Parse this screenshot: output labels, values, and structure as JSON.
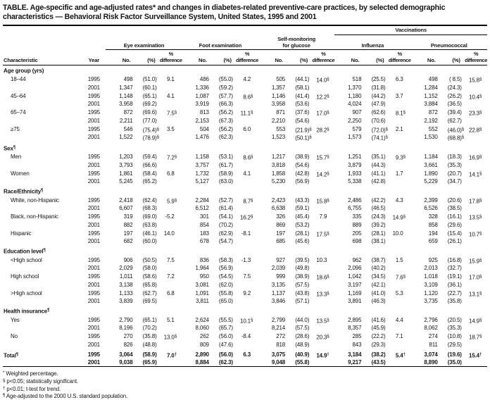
{
  "title_line1": "TABLE. Age-specific and age-adjusted rates* and changes in diabetes-related preventive-care practices, by selected demographic",
  "title_line2": "characteristics — Behavioral Risk Factor Surveillance System, United States, 1995 and 2001",
  "table": {
    "vaccinations_label": "Vaccinations",
    "groups": [
      {
        "label": "Eye examination"
      },
      {
        "label": "Foot examination"
      },
      {
        "label": "Self-monitoring\nfor glucose"
      },
      {
        "label": "Influenza"
      },
      {
        "label": "Pneumococcal"
      }
    ],
    "col_headers": {
      "characteristic": "Characteristic",
      "year": "Year",
      "no": "No.",
      "pct": "(%)",
      "diff_pct": "%",
      "diff_word": "difference"
    },
    "sections": [
      {
        "header": "Age group (yrs)",
        "rows": [
          {
            "label": "18–44",
            "data": [
              {
                "year": "1995",
                "cells": [
                  "498",
                  "(51.0)",
                  "9.1",
                  "486",
                  "(55.0)",
                  "4.2",
                  "505",
                  "(44.1)",
                  "14.0§",
                  "518",
                  "(25.5)",
                  "6.3",
                  "498",
                  "( 8.5)",
                  "15.8§"
                ]
              },
              {
                "year": "2001",
                "cells": [
                  "1,347",
                  "(60.1)",
                  "",
                  "1,336",
                  "(59.2)",
                  "",
                  "1,357",
                  "(58.1)",
                  "",
                  "1,370",
                  "(31.8)",
                  "",
                  "1,284",
                  "(24.3)",
                  ""
                ]
              }
            ]
          },
          {
            "label": "45–64",
            "data": [
              {
                "year": "1995",
                "cells": [
                  "1,148",
                  "(65.1)",
                  "4.1",
                  "1,087",
                  "(57.7)",
                  "8.6§",
                  "1,146",
                  "(41.4)",
                  "12.2§",
                  "1,180",
                  "(44.2)",
                  "3.7",
                  "1,152",
                  "(26.2)",
                  "10.4§"
                ]
              },
              {
                "year": "2001",
                "cells": [
                  "3,958",
                  "(69.2)",
                  "",
                  "3,919",
                  "(66.3)",
                  "",
                  "3,958",
                  "(53.6)",
                  "",
                  "4,024",
                  "(47.9)",
                  "",
                  "3,884",
                  "(36.5)",
                  ""
                ]
              }
            ]
          },
          {
            "label": "65–74",
            "data": [
              {
                "year": "1995",
                "cells": [
                  "872",
                  "(69.6)",
                  "7.5§",
                  "813",
                  "(56.2)",
                  "11.1§",
                  "871",
                  "(37.6)",
                  "17.0§",
                  "907",
                  "(62.6)",
                  "8.1§",
                  "872",
                  "(39.4)",
                  "23.3§"
                ]
              },
              {
                "year": "2001",
                "cells": [
                  "2,211",
                  "(77.0)",
                  "",
                  "2,153",
                  "(67.3)",
                  "",
                  "2,210",
                  "(54.6)",
                  "",
                  "2,250",
                  "(70.6)",
                  "",
                  "2,192",
                  "(62.7)",
                  ""
                ]
              }
            ]
          },
          {
            "label": "≥75",
            "data": [
              {
                "year": "1995",
                "cells": [
                  "546",
                  "(75.4)§",
                  "3.5",
                  "504",
                  "(56.2)",
                  "6.0",
                  "553",
                  "(21.9)§",
                  "28.2§",
                  "579",
                  "(72.0)§",
                  "2.1",
                  "552",
                  "(46.0)§",
                  "22.8§"
                ]
              },
              {
                "year": "2001",
                "cells": [
                  "1,522",
                  "(78.9)§",
                  "",
                  "1,476",
                  "(62.3)",
                  "",
                  "1,523",
                  "(50.1)§",
                  "",
                  "1,573",
                  "(74.1)§",
                  "",
                  "1,530",
                  "(68.8)§",
                  ""
                ]
              }
            ]
          }
        ]
      },
      {
        "header": "Sex¶",
        "rows": [
          {
            "label": "Men",
            "data": [
              {
                "year": "1995",
                "cells": [
                  "1,203",
                  "(59.4)",
                  "7.2§",
                  "1,158",
                  "(53.1)",
                  "8.6§",
                  "1,217",
                  "(38.9)",
                  "15.7§",
                  "1,251",
                  "(35.1)",
                  "9.3§",
                  "1,184",
                  "(18.3)",
                  "16.9§"
                ]
              },
              {
                "year": "2001",
                "cells": [
                  "3,793",
                  "(66.6)",
                  "",
                  "3,757",
                  "(61.7)",
                  "",
                  "3,818",
                  "(54.6)",
                  "",
                  "3,879",
                  "(44.3)",
                  "",
                  "3,661",
                  "(35.3)",
                  ""
                ]
              }
            ]
          },
          {
            "label": "Women",
            "data": [
              {
                "year": "1995",
                "cells": [
                  "1,861",
                  "(58.4)",
                  "6.8",
                  "1,732",
                  "(58.9)",
                  "4.1",
                  "1,858",
                  "(42.8)",
                  "14.2§",
                  "1,933",
                  "(41.1)",
                  "1.7",
                  "1,890",
                  "(20.7)",
                  "14.1§"
                ]
              },
              {
                "year": "2001",
                "cells": [
                  "5,245",
                  "(65.2)",
                  "",
                  "5,127",
                  "(63.0)",
                  "",
                  "5,230",
                  "(56.9)",
                  "",
                  "5,338",
                  "(42.8)",
                  "",
                  "5,229",
                  "(34.7)",
                  ""
                ]
              }
            ]
          }
        ]
      },
      {
        "header": "Race/Ethnicity¶",
        "rows": [
          {
            "label": "White, non-Hispanic",
            "data": [
              {
                "year": "1995",
                "cells": [
                  "2,418",
                  "(62.4)",
                  "5.9§",
                  "2,284",
                  "(52.7)",
                  "8.7§",
                  "2,423",
                  "(43.3)",
                  "15.8§",
                  "2,486",
                  "(42.2)",
                  "4.3",
                  "2,399",
                  "(20.6)",
                  "17.8§"
                ]
              },
              {
                "year": "2001",
                "cells": [
                  "6,607",
                  "(68.3)",
                  "",
                  "6,512",
                  "(61.4)",
                  "",
                  "6,638",
                  "(59.1)",
                  "",
                  "6,755",
                  "(46.5)",
                  "",
                  "6,526",
                  "(38.5)",
                  ""
                ]
              }
            ]
          },
          {
            "label": "Black, non-Hispanic",
            "data": [
              {
                "year": "1995",
                "cells": [
                  "319",
                  "(69.0)",
                  "-5.2",
                  "301",
                  "(54.1)",
                  "16.2§",
                  "326",
                  "(45.4)",
                  "7.9",
                  "335",
                  "(24.3)",
                  "14.9§",
                  "328",
                  "(16.1)",
                  "13.5§"
                ]
              },
              {
                "year": "2001",
                "cells": [
                  "882",
                  "(63.8)",
                  "",
                  "854",
                  "(70.2)",
                  "",
                  "869",
                  "(53.2)",
                  "",
                  "889",
                  "(39.2)",
                  "",
                  "858",
                  "(29.6)",
                  ""
                ]
              }
            ]
          },
          {
            "label": "Hispanic",
            "data": [
              {
                "year": "1995",
                "cells": [
                  "197",
                  "(46.1)",
                  "14.0",
                  "183",
                  "(62.9)",
                  "-8.1",
                  "197",
                  "(28.1)",
                  "17.5§",
                  "205",
                  "(28.1)",
                  "10.0",
                  "194",
                  "(15.4)",
                  "10.7§"
                ]
              },
              {
                "year": "2001",
                "cells": [
                  "682",
                  "(60.0)",
                  "",
                  "678",
                  "(54.7)",
                  "",
                  "685",
                  "(45.6)",
                  "",
                  "698",
                  "(38.1)",
                  "",
                  "659",
                  "(26.1)",
                  ""
                ]
              }
            ]
          }
        ]
      },
      {
        "header": "Education level¶",
        "rows": [
          {
            "label": "<High school",
            "data": [
              {
                "year": "1995",
                "cells": [
                  "906",
                  "(50.5)",
                  "7.5",
                  "836",
                  "(58.3)",
                  "-1.3",
                  "927",
                  "(39.5)",
                  "10.3",
                  "962",
                  "(38.7)",
                  "1.5",
                  "925",
                  "(16.8)",
                  "15.9§"
                ]
              },
              {
                "year": "2001",
                "cells": [
                  "2,029",
                  "(58.0)",
                  "",
                  "1,964",
                  "(56.9)",
                  "",
                  "2,039",
                  "(49.8)",
                  "",
                  "2,096",
                  "(40.2)",
                  "",
                  "2,013",
                  "(32.7)",
                  ""
                ]
              }
            ]
          },
          {
            "label": "High school",
            "data": [
              {
                "year": "1995",
                "cells": [
                  "1,011",
                  "(58.6)",
                  "7.2",
                  "950",
                  "(54.5)",
                  "7.5",
                  "999",
                  "(38.9)",
                  "18.6§",
                  "1,042",
                  "(34.5)",
                  "7.6§",
                  "1,018",
                  "(19.1)",
                  "17.0§"
                ]
              },
              {
                "year": "2001",
                "cells": [
                  "3,138",
                  "(65.8)",
                  "",
                  "3,081",
                  "(62.0)",
                  "",
                  "3,135",
                  "(57.5)",
                  "",
                  "3,197",
                  "(42.1)",
                  "",
                  "3,109",
                  "(36.1)",
                  ""
                ]
              }
            ]
          },
          {
            "label": ">High school",
            "data": [
              {
                "year": "1995",
                "cells": [
                  "1,133",
                  "(62.7)",
                  "6.8",
                  "1,091",
                  "(55.8)",
                  "9.2",
                  "1,137",
                  "(43.8)",
                  "13.3§",
                  "1,169",
                  "(41.0)",
                  "5.3",
                  "1,120",
                  "(22.7)",
                  "13.1§"
                ]
              },
              {
                "year": "2001",
                "cells": [
                  "3,839",
                  "(69.5)",
                  "",
                  "3,811",
                  "(65.0)",
                  "",
                  "3,846",
                  "(57.1)",
                  "",
                  "3,891",
                  "(46.3)",
                  "",
                  "3,735",
                  "(35.8)",
                  ""
                ]
              }
            ]
          }
        ]
      },
      {
        "header": "Health insurance¶",
        "rows": [
          {
            "label": "Yes",
            "data": [
              {
                "year": "1995",
                "cells": [
                  "2,790",
                  "(65.1)",
                  "5.1",
                  "2,624",
                  "(55.5)",
                  "10.1§",
                  "2,799",
                  "(44.0)",
                  "13.5§",
                  "2,895",
                  "(41.6)",
                  "4.4",
                  "2,796",
                  "(20.5)",
                  "14.9§"
                ]
              },
              {
                "year": "2001",
                "cells": [
                  "8,196",
                  "(70.2)",
                  "",
                  "8,060",
                  "(65.7)",
                  "",
                  "8,214",
                  "(57.5)",
                  "",
                  "8,357",
                  "(45.9)",
                  "",
                  "8,062",
                  "(35.3)",
                  ""
                ]
              }
            ]
          },
          {
            "label": "No",
            "data": [
              {
                "year": "1995",
                "cells": [
                  "270",
                  "(35.8)",
                  "13.0§",
                  "262",
                  "(56.0)",
                  "-8.4",
                  "272",
                  "(28.6)",
                  "20.3§",
                  "285",
                  "(22.2)",
                  "7.1",
                  "274",
                  "(10.8)",
                  "18.7§"
                ]
              },
              {
                "year": "2001",
                "cells": [
                  "826",
                  "(48.8)",
                  "",
                  "809",
                  "(47.6)",
                  "",
                  "818",
                  "(48.9)",
                  "",
                  "843",
                  "(29.3)",
                  "",
                  "811",
                  "(29.5)",
                  ""
                ]
              }
            ]
          }
        ]
      },
      {
        "header": null,
        "rows": [
          {
            "label": "Total¶",
            "bold": true,
            "indent": false,
            "data": [
              {
                "year": "1995",
                "cells": [
                  "3,064",
                  "(58.9)",
                  "7.0†",
                  "2,890",
                  "(56.0)",
                  "6.3",
                  "3,075",
                  "(40.9)",
                  "14.9†",
                  "3,184",
                  "(38.2)",
                  "5.4†",
                  "3,074",
                  "(19.6)",
                  "15.4†"
                ]
              },
              {
                "year": "2001",
                "cells": [
                  "9,038",
                  "(65.9)",
                  "",
                  "8,884",
                  "(62.3)",
                  "",
                  "9,048",
                  "(55.8)",
                  "",
                  "9,217",
                  "(43.5)",
                  "",
                  "8,890",
                  "(35.0)",
                  ""
                ]
              }
            ]
          }
        ]
      }
    ]
  },
  "footnotes": [
    {
      "marker": "*",
      "text": "Weighted percentage."
    },
    {
      "marker": "§",
      "text": "p<0.05; statistically significant."
    },
    {
      "marker": "†",
      "text": "p<0.01; t-test for trend."
    },
    {
      "marker": "¶",
      "text": "Age-adjusted to the 2000 U.S. standard population."
    }
  ]
}
